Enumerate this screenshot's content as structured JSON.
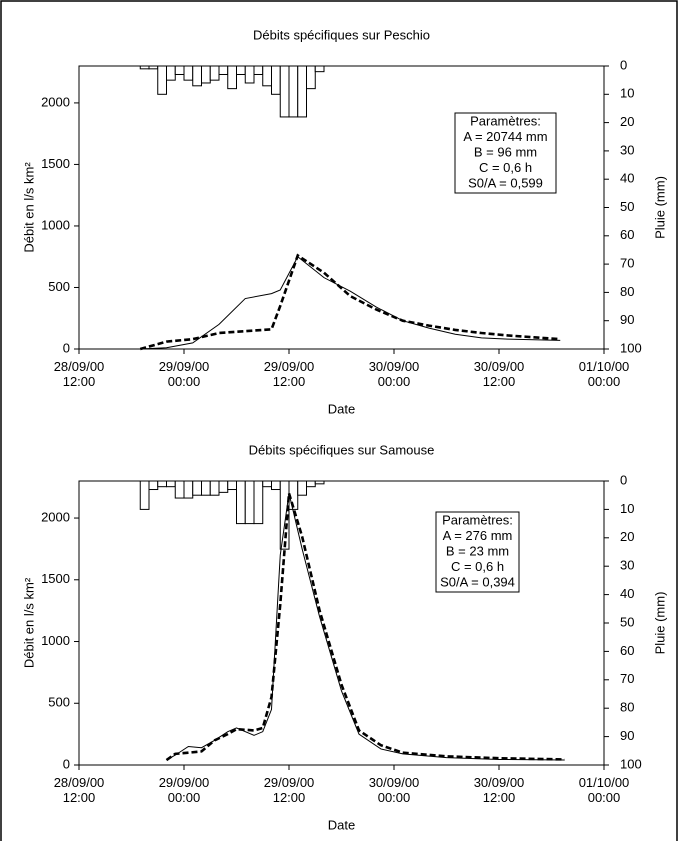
{
  "chart_data": [
    {
      "type": "line",
      "title": "Débits spécifiques sur Peschio",
      "xlabel": "Date",
      "ylabel": "Débit en l/s km²",
      "y2label": "Pluie (mm)",
      "annotation": [
        "Paramètres:",
        "A = 20744 mm",
        "B = 96 mm",
        "C = 0,6 h",
        "S0/A = 0,599"
      ],
      "xlim": [
        "2000-09-28T12:00",
        "2000-10-01T00:00"
      ],
      "xticks": [
        {
          "value": "2000-09-28T12:00",
          "label": "28/09/00\n12:00"
        },
        {
          "value": "2000-09-29T00:00",
          "label": "29/09/00\n00:00"
        },
        {
          "value": "2000-09-29T12:00",
          "label": "29/09/00\n12:00"
        },
        {
          "value": "2000-09-30T00:00",
          "label": "30/09/00\n00:00"
        },
        {
          "value": "2000-09-30T12:00",
          "label": "30/09/00\n12:00"
        },
        {
          "value": "2000-10-01T00:00",
          "label": "01/10/00\n00:00"
        }
      ],
      "ylim": [
        0,
        2300
      ],
      "yticks": [
        0,
        500,
        1000,
        1500,
        2000
      ],
      "y2lim": [
        0,
        100
      ],
      "y2_inverted": true,
      "y2ticks": [
        0,
        10,
        20,
        30,
        40,
        50,
        60,
        70,
        80,
        90,
        100
      ],
      "series": [
        {
          "type": "bar",
          "axis": "y2",
          "color": "#000000",
          "x": [
            "2000-09-28T19:00",
            "2000-09-28T20:00",
            "2000-09-28T21:00",
            "2000-09-28T22:00",
            "2000-09-28T23:00",
            "2000-09-29T00:00",
            "2000-09-29T01:00",
            "2000-09-29T02:00",
            "2000-09-29T03:00",
            "2000-09-29T04:00",
            "2000-09-29T05:00",
            "2000-09-29T06:00",
            "2000-09-29T07:00",
            "2000-09-29T08:00",
            "2000-09-29T09:00",
            "2000-09-29T10:00",
            "2000-09-29T11:00",
            "2000-09-29T12:00",
            "2000-09-29T13:00",
            "2000-09-29T14:00",
            "2000-09-29T15:00"
          ],
          "values": [
            1,
            1,
            10,
            5,
            3,
            5,
            7,
            6,
            5,
            3,
            8,
            3,
            6,
            3,
            7,
            10,
            18,
            18,
            18,
            8,
            2
          ]
        },
        {
          "type": "line",
          "color": "#000000",
          "line_style": "solid",
          "x": [
            "2000-09-28T19:00",
            "2000-09-28T22:00",
            "2000-09-29T01:00",
            "2000-09-29T04:00",
            "2000-09-29T07:00",
            "2000-09-29T10:00",
            "2000-09-29T11:00",
            "2000-09-29T13:00",
            "2000-09-29T16:00",
            "2000-09-29T19:00",
            "2000-09-29T22:00",
            "2000-09-30T01:00",
            "2000-09-30T04:00",
            "2000-09-30T07:00",
            "2000-09-30T10:00",
            "2000-09-30T13:00",
            "2000-09-30T16:00",
            "2000-09-30T19:00"
          ],
          "values": [
            0,
            10,
            50,
            200,
            410,
            450,
            480,
            750,
            580,
            470,
            340,
            230,
            170,
            120,
            90,
            80,
            75,
            70
          ]
        },
        {
          "type": "line",
          "color": "#000000",
          "line_style": "dashed",
          "x": [
            "2000-09-28T19:00",
            "2000-09-28T22:00",
            "2000-09-29T01:00",
            "2000-09-29T04:00",
            "2000-09-29T07:00",
            "2000-09-29T10:00",
            "2000-09-29T11:00",
            "2000-09-29T13:00",
            "2000-09-29T16:00",
            "2000-09-29T19:00",
            "2000-09-29T22:00",
            "2000-09-30T01:00",
            "2000-09-30T04:00",
            "2000-09-30T07:00",
            "2000-09-30T10:00",
            "2000-09-30T13:00",
            "2000-09-30T16:00",
            "2000-09-30T19:00"
          ],
          "values": [
            0,
            60,
            80,
            130,
            145,
            160,
            350,
            760,
            620,
            430,
            320,
            230,
            190,
            155,
            130,
            110,
            95,
            80
          ]
        }
      ]
    },
    {
      "type": "line",
      "title": "Débits spécifiques sur Samouse",
      "xlabel": "Date",
      "ylabel": "Débit en l/s km²",
      "y2label": "Pluie (mm)",
      "annotation": [
        "Paramètres:",
        "A = 276 mm",
        "B = 23 mm",
        "C = 0,6 h",
        "S0/A = 0,394"
      ],
      "xlim": [
        "2000-09-28T12:00",
        "2000-10-01T00:00"
      ],
      "xticks": [
        {
          "value": "2000-09-28T12:00",
          "label": "28/09/00\n12:00"
        },
        {
          "value": "2000-09-29T00:00",
          "label": "29/09/00\n00:00"
        },
        {
          "value": "2000-09-29T12:00",
          "label": "29/09/00\n12:00"
        },
        {
          "value": "2000-09-30T00:00",
          "label": "30/09/00\n00:00"
        },
        {
          "value": "2000-09-30T12:00",
          "label": "30/09/00\n12:00"
        },
        {
          "value": "2000-10-01T00:00",
          "label": "01/10/00\n00:00"
        }
      ],
      "ylim": [
        0,
        2300
      ],
      "yticks": [
        0,
        500,
        1000,
        1500,
        2000
      ],
      "y2lim": [
        0,
        100
      ],
      "y2_inverted": true,
      "y2ticks": [
        0,
        10,
        20,
        30,
        40,
        50,
        60,
        70,
        80,
        90,
        100
      ],
      "series": [
        {
          "type": "bar",
          "axis": "y2",
          "color": "#000000",
          "x": [
            "2000-09-28T19:00",
            "2000-09-28T20:00",
            "2000-09-28T21:00",
            "2000-09-28T22:00",
            "2000-09-28T23:00",
            "2000-09-29T00:00",
            "2000-09-29T01:00",
            "2000-09-29T02:00",
            "2000-09-29T03:00",
            "2000-09-29T04:00",
            "2000-09-29T05:00",
            "2000-09-29T06:00",
            "2000-09-29T07:00",
            "2000-09-29T08:00",
            "2000-09-29T09:00",
            "2000-09-29T10:00",
            "2000-09-29T11:00",
            "2000-09-29T12:00",
            "2000-09-29T13:00",
            "2000-09-29T14:00",
            "2000-09-29T15:00"
          ],
          "values": [
            10,
            3,
            2,
            2,
            6,
            6,
            5,
            5,
            5,
            4,
            3,
            15,
            15,
            15,
            2,
            3,
            24,
            10,
            5,
            2,
            1
          ]
        },
        {
          "type": "line",
          "color": "#000000",
          "line_style": "solid",
          "x": [
            "2000-09-28T22:00",
            "2000-09-28T23:00",
            "2000-09-29T00:30",
            "2000-09-29T02:00",
            "2000-09-29T03:30",
            "2000-09-29T05:00",
            "2000-09-29T06:00",
            "2000-09-29T08:00",
            "2000-09-29T09:00",
            "2000-09-29T10:00",
            "2000-09-29T11:00",
            "2000-09-29T12:00",
            "2000-09-29T13:30",
            "2000-09-29T15:30",
            "2000-09-29T18:00",
            "2000-09-29T20:00",
            "2000-09-29T22:30",
            "2000-09-30T01:00",
            "2000-09-30T06:00",
            "2000-09-30T12:00",
            "2000-09-30T19:30"
          ],
          "values": [
            40,
            80,
            150,
            140,
            200,
            270,
            300,
            240,
            270,
            450,
            1700,
            2200,
            1750,
            1200,
            600,
            250,
            130,
            90,
            60,
            45,
            40
          ]
        },
        {
          "type": "line",
          "color": "#000000",
          "line_style": "dashed",
          "x": [
            "2000-09-28T22:00",
            "2000-09-28T23:00",
            "2000-09-29T00:30",
            "2000-09-29T02:00",
            "2000-09-29T03:30",
            "2000-09-29T05:00",
            "2000-09-29T06:00",
            "2000-09-29T08:00",
            "2000-09-29T09:00",
            "2000-09-29T10:00",
            "2000-09-29T11:00",
            "2000-09-29T12:00",
            "2000-09-29T13:30",
            "2000-09-29T15:30",
            "2000-09-29T18:00",
            "2000-09-29T20:00",
            "2000-09-29T22:30",
            "2000-09-30T01:00",
            "2000-09-30T06:00",
            "2000-09-30T12:00",
            "2000-09-30T19:30"
          ],
          "values": [
            40,
            90,
            100,
            110,
            200,
            250,
            290,
            280,
            300,
            550,
            1300,
            2200,
            1850,
            1250,
            650,
            280,
            160,
            100,
            70,
            55,
            45
          ]
        }
      ]
    }
  ]
}
